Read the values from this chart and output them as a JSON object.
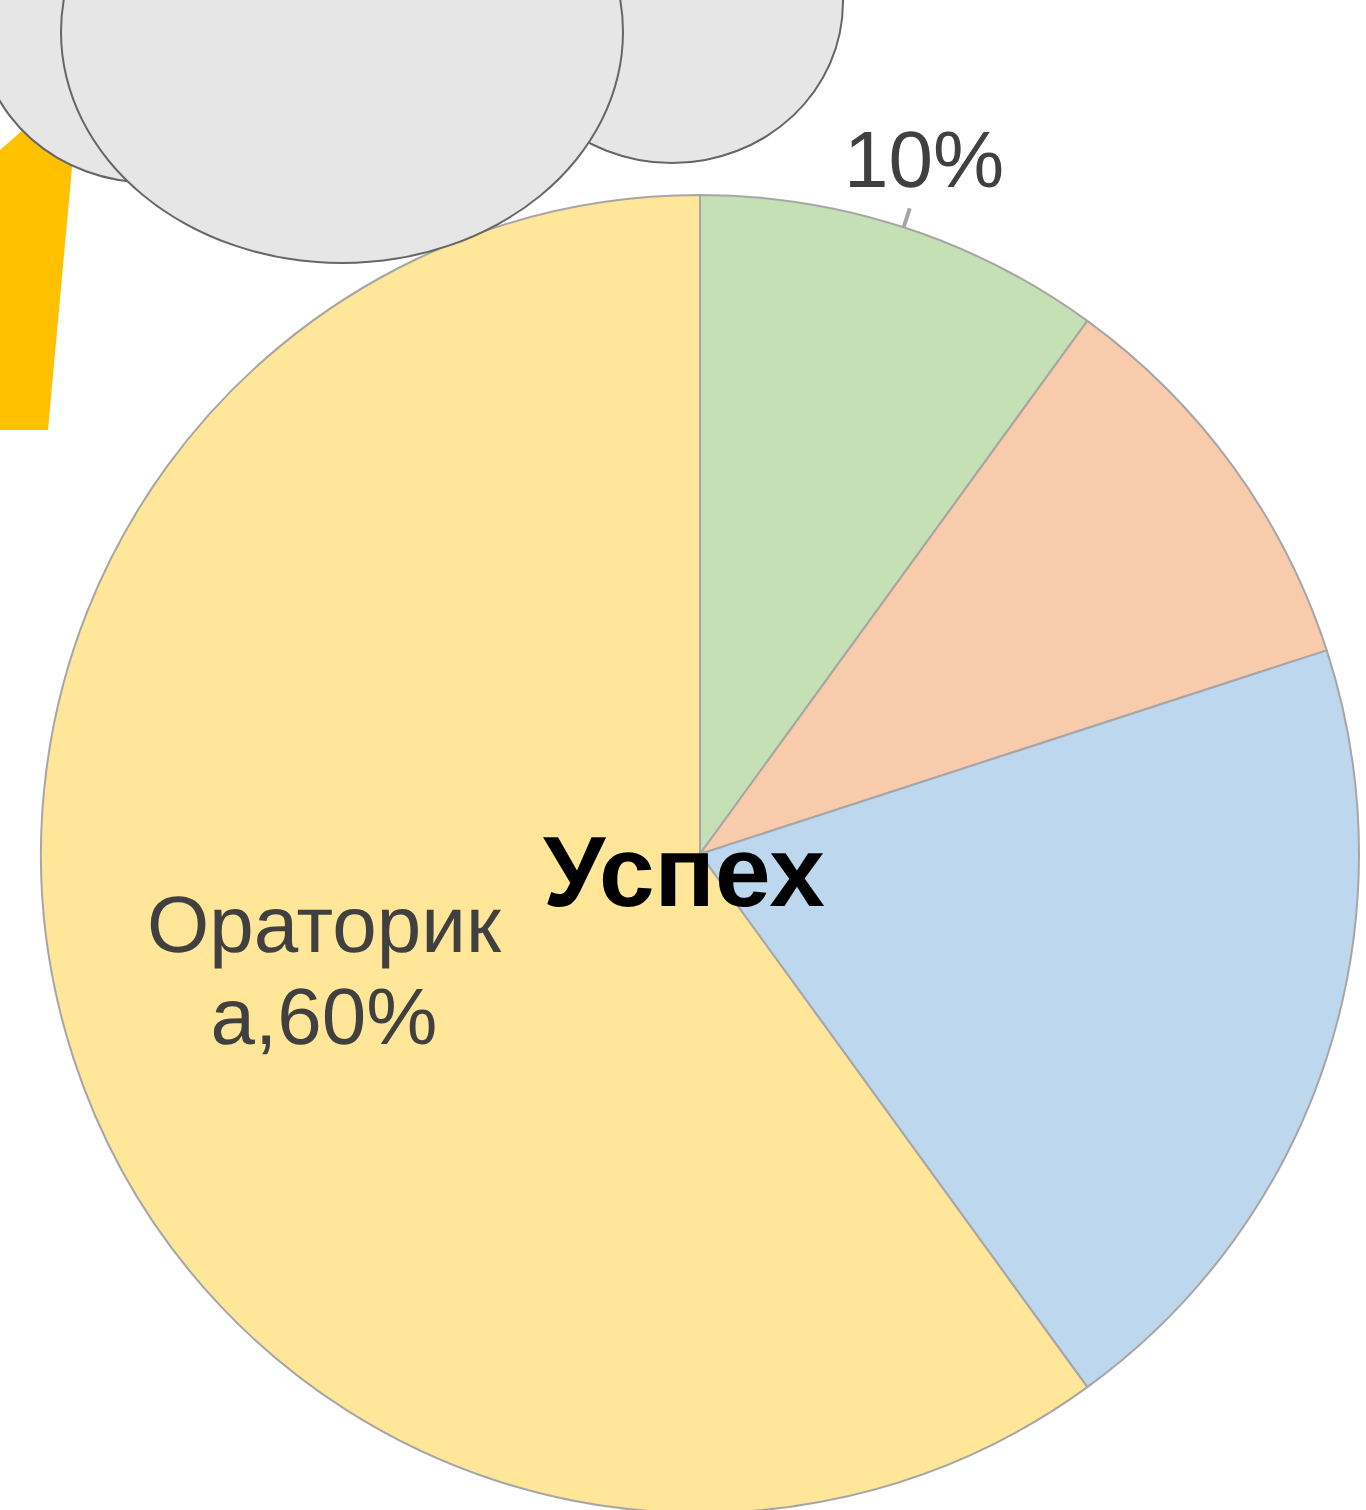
{
  "chart_data": {
    "type": "pie",
    "title": "Успех",
    "categories": [
      null,
      null,
      null,
      "Ораторика"
    ],
    "values": [
      10,
      10,
      20,
      60
    ],
    "colors": [
      "#c5e0b4",
      "#f8cbad",
      "#bdd7ee",
      "#ffe699"
    ],
    "value_labels": [
      "10%",
      null,
      null,
      "60%"
    ],
    "legend": false
  }
}
